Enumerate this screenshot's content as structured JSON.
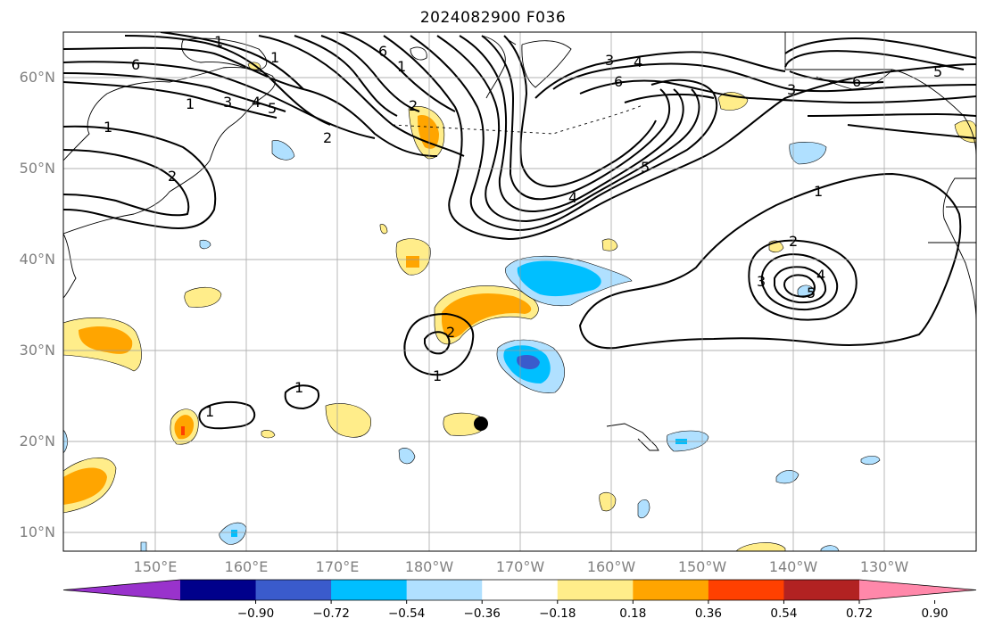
{
  "title": "2024082900 F036",
  "map": {
    "lat_labels": [
      "60°N",
      "50°N",
      "40°N",
      "30°N",
      "20°N",
      "10°N"
    ],
    "lon_labels": [
      "150°E",
      "160°E",
      "170°E",
      "180°W",
      "170°W",
      "160°W",
      "150°W",
      "140°W",
      "130°W"
    ],
    "contour_labels": [
      "1",
      "6",
      "3",
      "4",
      "1",
      "2",
      "6",
      "3",
      "4",
      "6",
      "5",
      "1",
      "2",
      "2",
      "1",
      "1",
      "4",
      "5",
      "3",
      "6",
      "5",
      "1",
      "2",
      "3",
      "4",
      "5",
      "2",
      "1",
      "1",
      "1"
    ]
  },
  "colorbar": {
    "colors": [
      "#9932cc",
      "#00008b",
      "#3a5bcc",
      "#00bfff",
      "#b0e0ff",
      "#ffffff",
      "#ffed8a",
      "#ffa500",
      "#ff4000",
      "#b22222",
      "#ff88aa"
    ],
    "tick_labels": [
      "−0.90",
      "−0.72",
      "−0.54",
      "−0.36",
      "−0.18",
      "0.18",
      "0.36",
      "0.54",
      "0.72",
      "0.90"
    ]
  }
}
